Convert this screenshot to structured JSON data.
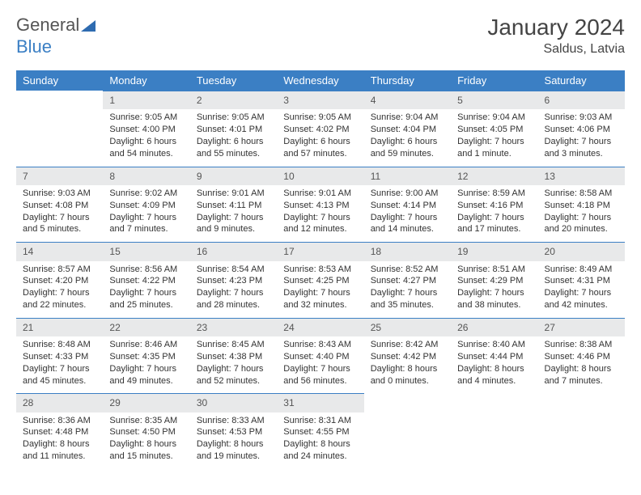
{
  "logo": {
    "text1": "General",
    "text2": "Blue"
  },
  "title": "January 2024",
  "location": "Saldus, Latvia",
  "colors": {
    "header_bg": "#3b7fc4",
    "header_text": "#ffffff",
    "daynum_bg": "#e8e9ea",
    "border": "#3b7fc4",
    "body_text": "#333333",
    "logo_gray": "#555555",
    "logo_blue": "#3b7fc4",
    "background": "#ffffff"
  },
  "typography": {
    "title_fontsize": 28,
    "location_fontsize": 16,
    "header_fontsize": 13,
    "cell_fontsize": 11,
    "daynum_fontsize": 12
  },
  "columns": [
    "Sunday",
    "Monday",
    "Tuesday",
    "Wednesday",
    "Thursday",
    "Friday",
    "Saturday"
  ],
  "weeks": [
    [
      {
        "blank": true
      },
      {
        "num": "1",
        "sunrise": "Sunrise: 9:05 AM",
        "sunset": "Sunset: 4:00 PM",
        "daylight": "Daylight: 6 hours and 54 minutes."
      },
      {
        "num": "2",
        "sunrise": "Sunrise: 9:05 AM",
        "sunset": "Sunset: 4:01 PM",
        "daylight": "Daylight: 6 hours and 55 minutes."
      },
      {
        "num": "3",
        "sunrise": "Sunrise: 9:05 AM",
        "sunset": "Sunset: 4:02 PM",
        "daylight": "Daylight: 6 hours and 57 minutes."
      },
      {
        "num": "4",
        "sunrise": "Sunrise: 9:04 AM",
        "sunset": "Sunset: 4:04 PM",
        "daylight": "Daylight: 6 hours and 59 minutes."
      },
      {
        "num": "5",
        "sunrise": "Sunrise: 9:04 AM",
        "sunset": "Sunset: 4:05 PM",
        "daylight": "Daylight: 7 hours and 1 minute."
      },
      {
        "num": "6",
        "sunrise": "Sunrise: 9:03 AM",
        "sunset": "Sunset: 4:06 PM",
        "daylight": "Daylight: 7 hours and 3 minutes."
      }
    ],
    [
      {
        "num": "7",
        "sunrise": "Sunrise: 9:03 AM",
        "sunset": "Sunset: 4:08 PM",
        "daylight": "Daylight: 7 hours and 5 minutes."
      },
      {
        "num": "8",
        "sunrise": "Sunrise: 9:02 AM",
        "sunset": "Sunset: 4:09 PM",
        "daylight": "Daylight: 7 hours and 7 minutes."
      },
      {
        "num": "9",
        "sunrise": "Sunrise: 9:01 AM",
        "sunset": "Sunset: 4:11 PM",
        "daylight": "Daylight: 7 hours and 9 minutes."
      },
      {
        "num": "10",
        "sunrise": "Sunrise: 9:01 AM",
        "sunset": "Sunset: 4:13 PM",
        "daylight": "Daylight: 7 hours and 12 minutes."
      },
      {
        "num": "11",
        "sunrise": "Sunrise: 9:00 AM",
        "sunset": "Sunset: 4:14 PM",
        "daylight": "Daylight: 7 hours and 14 minutes."
      },
      {
        "num": "12",
        "sunrise": "Sunrise: 8:59 AM",
        "sunset": "Sunset: 4:16 PM",
        "daylight": "Daylight: 7 hours and 17 minutes."
      },
      {
        "num": "13",
        "sunrise": "Sunrise: 8:58 AM",
        "sunset": "Sunset: 4:18 PM",
        "daylight": "Daylight: 7 hours and 20 minutes."
      }
    ],
    [
      {
        "num": "14",
        "sunrise": "Sunrise: 8:57 AM",
        "sunset": "Sunset: 4:20 PM",
        "daylight": "Daylight: 7 hours and 22 minutes."
      },
      {
        "num": "15",
        "sunrise": "Sunrise: 8:56 AM",
        "sunset": "Sunset: 4:22 PM",
        "daylight": "Daylight: 7 hours and 25 minutes."
      },
      {
        "num": "16",
        "sunrise": "Sunrise: 8:54 AM",
        "sunset": "Sunset: 4:23 PM",
        "daylight": "Daylight: 7 hours and 28 minutes."
      },
      {
        "num": "17",
        "sunrise": "Sunrise: 8:53 AM",
        "sunset": "Sunset: 4:25 PM",
        "daylight": "Daylight: 7 hours and 32 minutes."
      },
      {
        "num": "18",
        "sunrise": "Sunrise: 8:52 AM",
        "sunset": "Sunset: 4:27 PM",
        "daylight": "Daylight: 7 hours and 35 minutes."
      },
      {
        "num": "19",
        "sunrise": "Sunrise: 8:51 AM",
        "sunset": "Sunset: 4:29 PM",
        "daylight": "Daylight: 7 hours and 38 minutes."
      },
      {
        "num": "20",
        "sunrise": "Sunrise: 8:49 AM",
        "sunset": "Sunset: 4:31 PM",
        "daylight": "Daylight: 7 hours and 42 minutes."
      }
    ],
    [
      {
        "num": "21",
        "sunrise": "Sunrise: 8:48 AM",
        "sunset": "Sunset: 4:33 PM",
        "daylight": "Daylight: 7 hours and 45 minutes."
      },
      {
        "num": "22",
        "sunrise": "Sunrise: 8:46 AM",
        "sunset": "Sunset: 4:35 PM",
        "daylight": "Daylight: 7 hours and 49 minutes."
      },
      {
        "num": "23",
        "sunrise": "Sunrise: 8:45 AM",
        "sunset": "Sunset: 4:38 PM",
        "daylight": "Daylight: 7 hours and 52 minutes."
      },
      {
        "num": "24",
        "sunrise": "Sunrise: 8:43 AM",
        "sunset": "Sunset: 4:40 PM",
        "daylight": "Daylight: 7 hours and 56 minutes."
      },
      {
        "num": "25",
        "sunrise": "Sunrise: 8:42 AM",
        "sunset": "Sunset: 4:42 PM",
        "daylight": "Daylight: 8 hours and 0 minutes."
      },
      {
        "num": "26",
        "sunrise": "Sunrise: 8:40 AM",
        "sunset": "Sunset: 4:44 PM",
        "daylight": "Daylight: 8 hours and 4 minutes."
      },
      {
        "num": "27",
        "sunrise": "Sunrise: 8:38 AM",
        "sunset": "Sunset: 4:46 PM",
        "daylight": "Daylight: 8 hours and 7 minutes."
      }
    ],
    [
      {
        "num": "28",
        "sunrise": "Sunrise: 8:36 AM",
        "sunset": "Sunset: 4:48 PM",
        "daylight": "Daylight: 8 hours and 11 minutes."
      },
      {
        "num": "29",
        "sunrise": "Sunrise: 8:35 AM",
        "sunset": "Sunset: 4:50 PM",
        "daylight": "Daylight: 8 hours and 15 minutes."
      },
      {
        "num": "30",
        "sunrise": "Sunrise: 8:33 AM",
        "sunset": "Sunset: 4:53 PM",
        "daylight": "Daylight: 8 hours and 19 minutes."
      },
      {
        "num": "31",
        "sunrise": "Sunrise: 8:31 AM",
        "sunset": "Sunset: 4:55 PM",
        "daylight": "Daylight: 8 hours and 24 minutes."
      },
      {
        "blank": true
      },
      {
        "blank": true
      },
      {
        "blank": true
      }
    ]
  ]
}
